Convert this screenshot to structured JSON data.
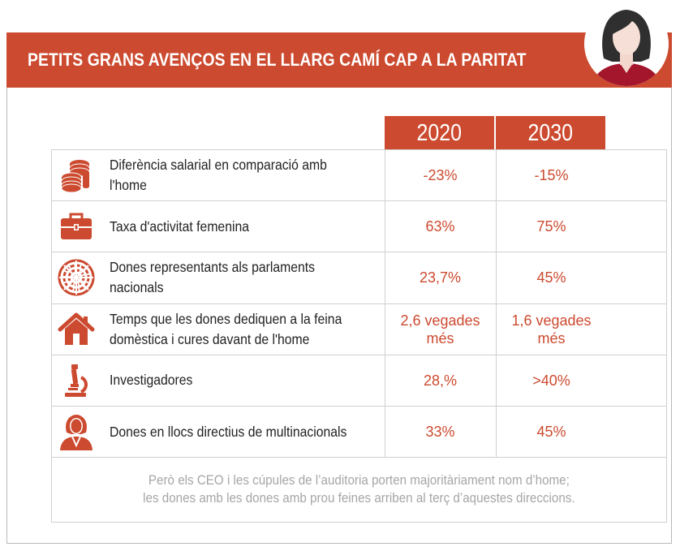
{
  "title": "PETITS GRANS AVENÇOS EN EL LLARG CAMÍ CAP A LA PARITAT",
  "accent_color": "#cc4a2f",
  "years": [
    "2020",
    "2030"
  ],
  "rows": [
    {
      "icon": "coins-icon",
      "label": "Diferència salarial en comparació amb l'home",
      "v2020": "-23%",
      "v2030": "-15%"
    },
    {
      "icon": "briefcase-icon",
      "label": "Taxa d'activitat femenina",
      "v2020": "63%",
      "v2030": "75%"
    },
    {
      "icon": "parliament-icon",
      "label": "Dones representants als parlaments nacionals",
      "v2020": "23,7%",
      "v2030": "45%"
    },
    {
      "icon": "house-icon",
      "label": "Temps que les dones dediquen a la feina domèstica i cures davant de l'home",
      "v2020": "2,6 vegades més",
      "v2030": "1,6 vegades més"
    },
    {
      "icon": "microscope-icon",
      "label": "Investigadores",
      "v2020": "28,%",
      "v2030": ">40%"
    },
    {
      "icon": "businesswoman-icon",
      "label": "Dones en llocs directius de multinacionals",
      "v2020": "33%",
      "v2030": "45%"
    }
  ],
  "footnote": {
    "line1": "Però els CEO i les cúpules de l’auditoria porten majoritàriament nom d’home;",
    "line2": "les dones amb les dones amb prou feines arriben al terç d’aquestes direccions."
  }
}
